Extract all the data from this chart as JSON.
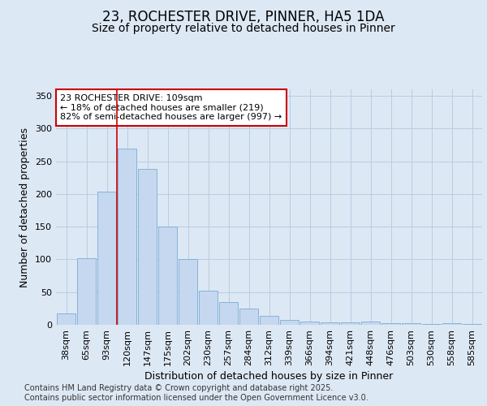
{
  "title_line1": "23, ROCHESTER DRIVE, PINNER, HA5 1DA",
  "title_line2": "Size of property relative to detached houses in Pinner",
  "xlabel": "Distribution of detached houses by size in Pinner",
  "ylabel": "Number of detached properties",
  "categories": [
    "38sqm",
    "65sqm",
    "93sqm",
    "120sqm",
    "147sqm",
    "175sqm",
    "202sqm",
    "230sqm",
    "257sqm",
    "284sqm",
    "312sqm",
    "339sqm",
    "366sqm",
    "394sqm",
    "421sqm",
    "448sqm",
    "476sqm",
    "503sqm",
    "530sqm",
    "558sqm",
    "585sqm"
  ],
  "values": [
    18,
    102,
    204,
    270,
    238,
    150,
    100,
    52,
    35,
    25,
    14,
    8,
    5,
    4,
    4,
    5,
    2,
    2,
    1,
    2,
    1
  ],
  "bar_color": "#c5d8f0",
  "bar_edge_color": "#7aacd4",
  "annotation_text": "23 ROCHESTER DRIVE: 109sqm\n← 18% of detached houses are smaller (219)\n82% of semi-detached houses are larger (997) →",
  "annotation_box_color": "white",
  "annotation_box_edge_color": "#cc0000",
  "vline_color": "#cc0000",
  "bg_color": "#dde8f5",
  "plot_bg_color": "#dde8f5",
  "grid_color": "#b8cde0",
  "ylim": [
    0,
    360
  ],
  "yticks": [
    0,
    50,
    100,
    150,
    200,
    250,
    300,
    350
  ],
  "vline_x": 3.0,
  "footer_text": "Contains HM Land Registry data © Crown copyright and database right 2025.\nContains public sector information licensed under the Open Government Licence v3.0.",
  "title_fontsize": 12,
  "subtitle_fontsize": 10,
  "axis_label_fontsize": 9,
  "tick_fontsize": 8,
  "annotation_fontsize": 8,
  "footer_fontsize": 7
}
